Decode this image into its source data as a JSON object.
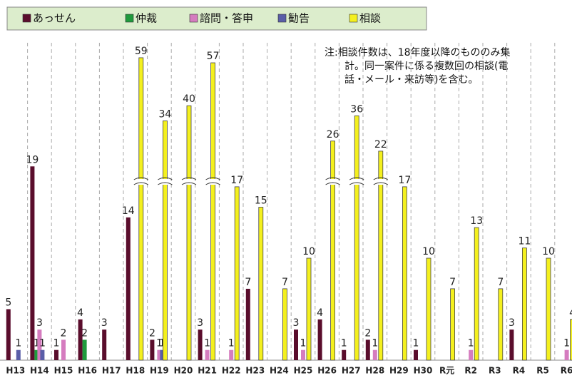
{
  "chart_data": {
    "type": "bar",
    "categories": [
      "H13",
      "H14",
      "H15",
      "H16",
      "H17",
      "H18",
      "H19",
      "H20",
      "H21",
      "H22",
      "H23",
      "H24",
      "H25",
      "H26",
      "H27",
      "H28",
      "H29",
      "H30",
      "R元",
      "R2",
      "R3",
      "R4",
      "R5",
      "R6"
    ],
    "series": [
      {
        "name": "あっせん",
        "color": "#5a0d2c",
        "values": [
          5,
          19,
          1,
          4,
          3,
          14,
          2,
          null,
          3,
          null,
          7,
          null,
          3,
          4,
          1,
          2,
          null,
          1,
          null,
          null,
          null,
          3,
          null,
          null
        ]
      },
      {
        "name": "仲裁",
        "color": "#1f9a3c",
        "values": [
          null,
          1,
          null,
          2,
          null,
          null,
          null,
          null,
          null,
          null,
          null,
          null,
          null,
          null,
          null,
          null,
          null,
          null,
          null,
          null,
          null,
          null,
          null,
          null
        ]
      },
      {
        "name": "諮問・答申",
        "color": "#d57cbf",
        "values": [
          null,
          3,
          2,
          null,
          null,
          null,
          1,
          null,
          1,
          1,
          null,
          null,
          1,
          null,
          null,
          1,
          null,
          null,
          null,
          1,
          null,
          null,
          null,
          1
        ]
      },
      {
        "name": "勧告",
        "color": "#5a5ea8",
        "values": [
          1,
          1,
          null,
          null,
          null,
          null,
          1,
          null,
          null,
          null,
          null,
          null,
          null,
          null,
          null,
          null,
          null,
          null,
          null,
          null,
          null,
          null,
          null,
          null
        ]
      },
      {
        "name": "相談",
        "color": "#f4f01e",
        "values": [
          null,
          null,
          null,
          null,
          null,
          59,
          34,
          40,
          57,
          17,
          15,
          7,
          10,
          26,
          36,
          22,
          17,
          10,
          7,
          13,
          7,
          11,
          10,
          4
        ]
      }
    ],
    "note": [
      "注:相談件数は、18年度以降のもののみ集",
      "計。同一案件に係る複数回の相談(電",
      "話・メール・来訪等)を含む。"
    ],
    "grid": true,
    "legend": "top"
  }
}
